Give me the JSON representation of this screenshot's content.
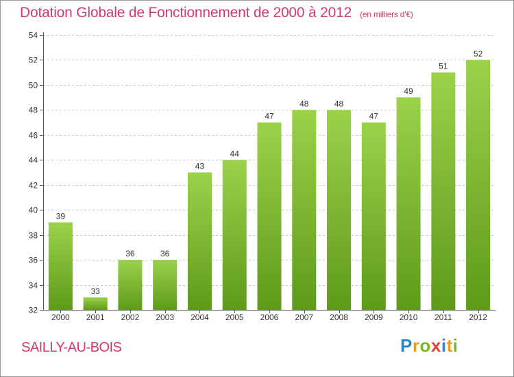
{
  "header": {
    "title": "Dotation Globale de Fonctionnement de 2000 à 2012",
    "subtitle": "(en milliers d'€)"
  },
  "footer": {
    "place": "SAILLY-AU-BOIS",
    "brand": "Proxiti",
    "brand_letters": [
      "P",
      "r",
      "o",
      "x",
      "i",
      "t",
      "i"
    ]
  },
  "colors": {
    "accent": "#d23a6a",
    "bar_top": "#9bd24a",
    "bar_bottom": "#5e9a1a",
    "grid": "#c8c8c8",
    "axis": "#555555"
  },
  "chart_data": {
    "type": "bar",
    "categories": [
      "2000",
      "2001",
      "2002",
      "2003",
      "2004",
      "2005",
      "2006",
      "2007",
      "2008",
      "2009",
      "2010",
      "2011",
      "2012"
    ],
    "values": [
      39,
      33,
      36,
      36,
      43,
      44,
      47,
      48,
      48,
      47,
      49,
      51,
      52
    ],
    "ylim": [
      32,
      54
    ],
    "yticks": [
      32,
      34,
      36,
      38,
      40,
      42,
      44,
      46,
      48,
      50,
      52,
      54
    ],
    "grid": true,
    "grid_axis": "y",
    "data_labels": true
  }
}
